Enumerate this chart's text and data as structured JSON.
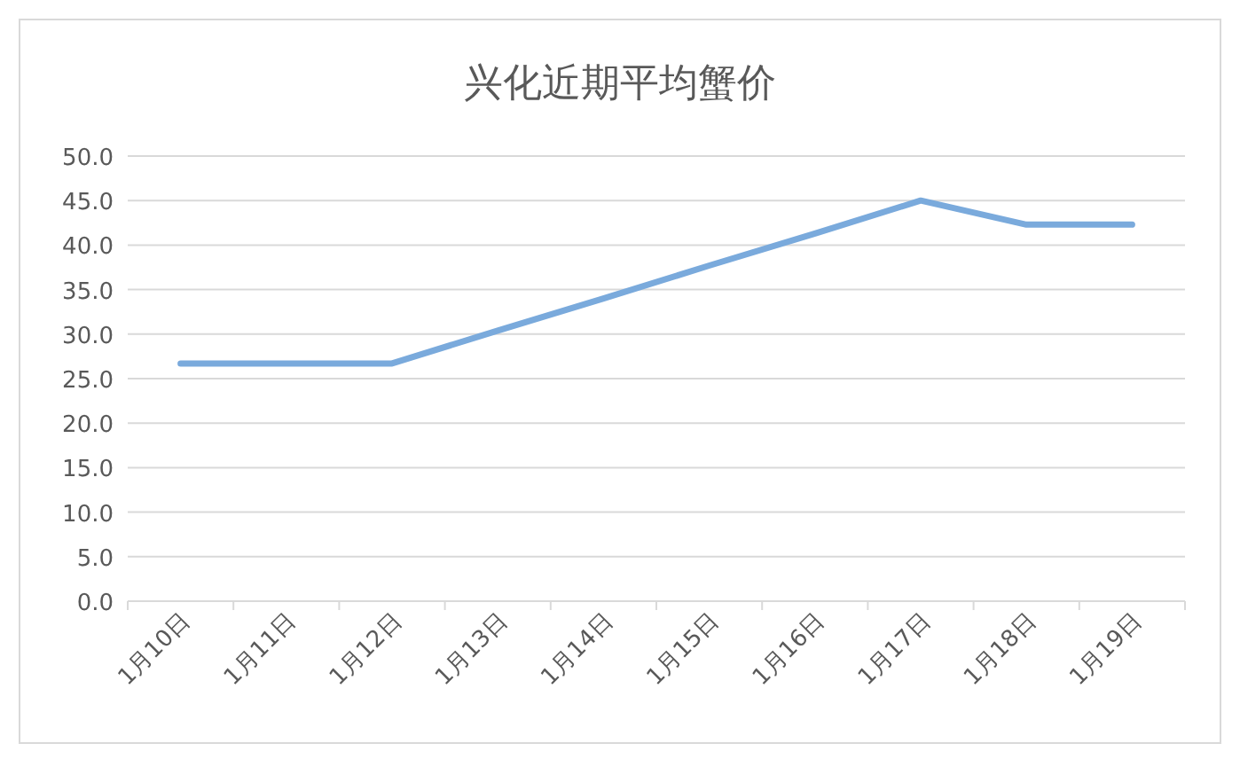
{
  "chart_data": {
    "type": "line",
    "title": "兴化近期平均蟹价",
    "categories": [
      "1月10日",
      "1月11日",
      "1月12日",
      "1月13日",
      "1月14日",
      "1月15日",
      "1月16日",
      "1月17日",
      "1月18日",
      "1月19日"
    ],
    "values": [
      26.7,
      26.7,
      26.7,
      30.4,
      34.0,
      37.7,
      41.3,
      45.0,
      42.3,
      42.3
    ],
    "color": "#7aaadc",
    "ylim": [
      0,
      50
    ],
    "yticks": [
      {
        "value": 0,
        "label": "0.0"
      },
      {
        "value": 5,
        "label": "5.0"
      },
      {
        "value": 10,
        "label": "10.0"
      },
      {
        "value": 15,
        "label": "15.0"
      },
      {
        "value": 20,
        "label": "20.0"
      },
      {
        "value": 25,
        "label": "25.0"
      },
      {
        "value": 30,
        "label": "30.0"
      },
      {
        "value": 35,
        "label": "35.0"
      },
      {
        "value": 40,
        "label": "40.0"
      },
      {
        "value": 45,
        "label": "45.0"
      },
      {
        "value": 50,
        "label": "50.0"
      }
    ],
    "grid": "y",
    "marker": "none",
    "line_style": "solid",
    "legend": false
  }
}
